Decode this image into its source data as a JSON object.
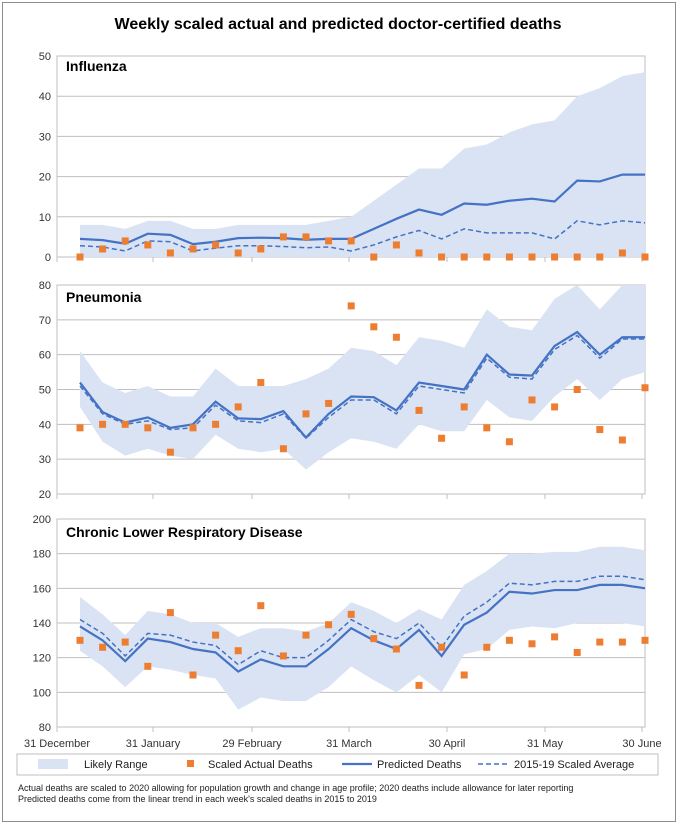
{
  "title": "Weekly scaled actual and predicted doctor-certified deaths",
  "notes": [
    "Actual deaths are scaled to 2020 allowing for population growth and change in age profile; 2020 deaths include allowance for later reporting",
    "Predicted deaths come from the linear trend in each week's scaled deaths in 2015 to 2019"
  ],
  "legend": {
    "likely": "Likely Range",
    "actual": "Scaled Actual Deaths",
    "predicted": "Predicted Deaths",
    "average": "2015-19 Scaled Average"
  },
  "colors": {
    "band": "#dae3f3",
    "predicted": "#4472c4",
    "average": "#4472c4",
    "actual": "#ed7d31"
  },
  "x_tick_labels": [
    "31 December",
    "31 January",
    "29 February",
    "31 March",
    "30 April",
    "31 May",
    "30 June"
  ],
  "chart_data": [
    {
      "type": "line",
      "title": "Influenza",
      "x_week": [
        1,
        2,
        3,
        4,
        5,
        6,
        7,
        8,
        9,
        10,
        11,
        12,
        13,
        14,
        15,
        16,
        17,
        18,
        19,
        20,
        21,
        22,
        23,
        24,
        25,
        26
      ],
      "ylim": [
        0,
        50
      ],
      "yticks": [
        0,
        10,
        20,
        30,
        40,
        50
      ],
      "likely_low": [
        0,
        0,
        0,
        0,
        0,
        0,
        0,
        0,
        0,
        0,
        0,
        0,
        0,
        0,
        0,
        0,
        0,
        0,
        0,
        0,
        0,
        0,
        0,
        0,
        0,
        0
      ],
      "likely_high": [
        8,
        8,
        7,
        9,
        9,
        7,
        7,
        8,
        8,
        8,
        8,
        9,
        10,
        14,
        18,
        22,
        22,
        27,
        28,
        31,
        33,
        34,
        40,
        42,
        45,
        46
      ],
      "series": [
        {
          "name": "Predicted Deaths",
          "values": [
            4.5,
            4.2,
            3.3,
            5.8,
            5.5,
            3.2,
            3.8,
            4.7,
            4.8,
            4.7,
            4.3,
            4.5,
            4.5,
            7,
            9.5,
            11.8,
            10.5,
            13.3,
            13,
            14,
            14.5,
            13.8,
            19,
            18.8,
            20.5,
            20.5
          ]
        },
        {
          "name": "2015-19 Scaled Average",
          "values": [
            2.8,
            2.5,
            1.5,
            4,
            3.8,
            1.5,
            2.2,
            2.8,
            2.8,
            2.6,
            2.3,
            2.5,
            1.5,
            3,
            5,
            6.6,
            4.5,
            7,
            6,
            6,
            6,
            4.5,
            9,
            8,
            9,
            8.5
          ]
        },
        {
          "name": "Scaled Actual Deaths",
          "values": [
            0,
            2,
            4,
            3,
            1,
            2,
            3,
            1,
            2,
            5,
            5,
            4,
            4,
            0,
            3,
            1,
            0,
            0,
            0,
            0,
            0,
            0,
            0,
            0,
            1,
            0
          ]
        }
      ]
    },
    {
      "type": "line",
      "title": "Pneumonia",
      "x_week": [
        1,
        2,
        3,
        4,
        5,
        6,
        7,
        8,
        9,
        10,
        11,
        12,
        13,
        14,
        15,
        16,
        17,
        18,
        19,
        20,
        21,
        22,
        23,
        24,
        25,
        26
      ],
      "ylim": [
        20,
        80
      ],
      "yticks": [
        20,
        30,
        40,
        50,
        60,
        70,
        80
      ],
      "likely_low": [
        45,
        35,
        31,
        33,
        31,
        30,
        37,
        33,
        32,
        33,
        27,
        32,
        36,
        35,
        33,
        40,
        38,
        38,
        47,
        42,
        41,
        48,
        53,
        47,
        53,
        55
      ],
      "likely_high": [
        61,
        52,
        49,
        51,
        48,
        48,
        56,
        51,
        51,
        51,
        53,
        56,
        62,
        61,
        57,
        65,
        64,
        62,
        73,
        68,
        67,
        76,
        80,
        73,
        80,
        80
      ],
      "series": [
        {
          "name": "Predicted Deaths",
          "values": [
            52,
            43.5,
            40.5,
            42,
            39,
            40,
            46.5,
            41.7,
            41.5,
            43.8,
            36.2,
            43,
            48,
            47.8,
            44,
            52,
            51,
            50,
            60,
            54.3,
            54,
            62.5,
            66.5,
            60,
            65,
            65
          ]
        },
        {
          "name": "2015-19 Scaled Average",
          "values": [
            51,
            43,
            40,
            41,
            38.5,
            39,
            45.5,
            41,
            40.5,
            43,
            36,
            42,
            47,
            47,
            43,
            51,
            50,
            49,
            59,
            53.5,
            53,
            61.5,
            65.5,
            59,
            64.5,
            64.5
          ]
        },
        {
          "name": "Scaled Actual Deaths",
          "values": [
            39,
            40,
            40,
            39,
            32,
            39,
            40,
            45,
            52,
            33,
            43,
            46,
            74,
            68,
            65,
            44,
            36,
            45,
            39,
            35,
            47,
            45,
            50,
            38.5,
            35.5,
            50.5
          ]
        }
      ]
    },
    {
      "type": "line",
      "title": "Chronic Lower Respiratory Disease",
      "x_week": [
        1,
        2,
        3,
        4,
        5,
        6,
        7,
        8,
        9,
        10,
        11,
        12,
        13,
        14,
        15,
        16,
        17,
        18,
        19,
        20,
        21,
        22,
        23,
        24,
        25,
        26
      ],
      "ylim": [
        80,
        200
      ],
      "yticks": [
        80,
        100,
        120,
        140,
        160,
        180,
        200
      ],
      "likely_low": [
        124,
        115,
        103,
        115,
        113,
        110,
        108,
        90,
        97,
        95,
        95,
        103,
        115,
        107,
        100,
        110,
        100,
        122,
        125,
        136,
        138,
        137,
        140,
        140,
        140,
        138
      ],
      "likely_high": [
        155,
        145,
        133,
        147,
        145,
        140,
        140,
        132,
        137,
        137,
        135,
        140,
        152,
        147,
        140,
        148,
        142,
        162,
        170,
        180,
        180,
        181,
        181,
        184,
        184,
        182
      ],
      "series": [
        {
          "name": "Predicted Deaths",
          "values": [
            138,
            130,
            118,
            131,
            129,
            125,
            123,
            112,
            119,
            115,
            115,
            125,
            137,
            130,
            125,
            136,
            121,
            139,
            146,
            158,
            157,
            159,
            159,
            162,
            162,
            160
          ]
        },
        {
          "name": "2015-19 Scaled Average",
          "values": [
            142,
            134,
            121,
            134,
            133,
            129,
            127,
            116,
            124,
            120,
            120,
            130,
            142,
            135,
            131,
            140,
            126,
            144,
            152,
            163,
            162,
            164,
            164,
            167,
            167,
            165
          ]
        },
        {
          "name": "Scaled Actual Deaths",
          "values": [
            130,
            126,
            129,
            115,
            146,
            110,
            133,
            124,
            150,
            121,
            133,
            139,
            145,
            131,
            125,
            104,
            126,
            110,
            126,
            130,
            128,
            132,
            123,
            129,
            129,
            130
          ]
        }
      ]
    }
  ]
}
